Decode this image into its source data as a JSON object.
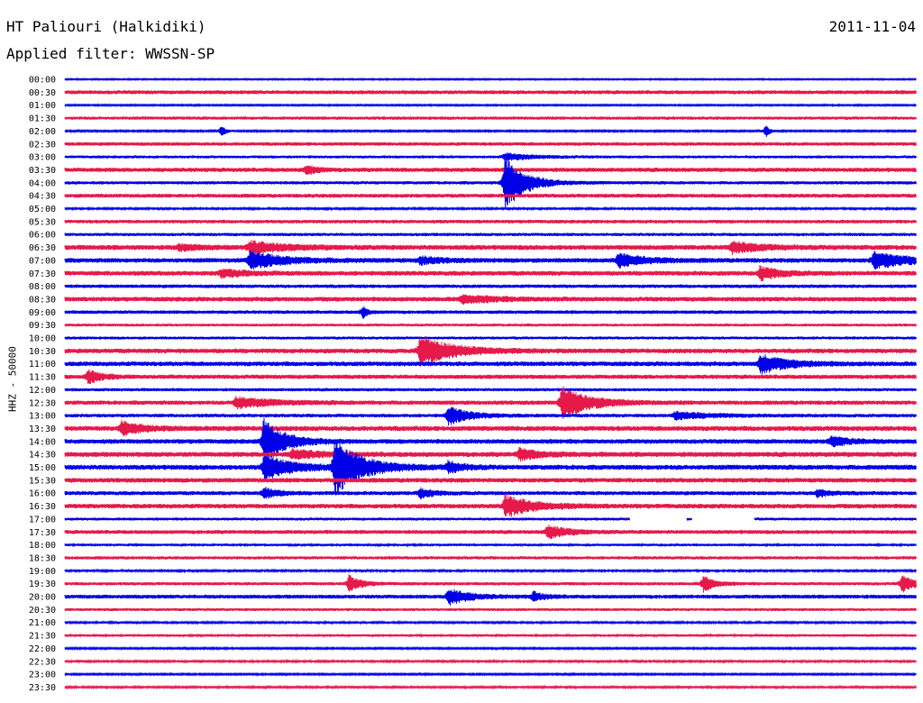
{
  "header": {
    "station": "HT Paliouri (Halkidiki)",
    "date": "2011-11-04",
    "filter_text": "Applied filter: WWSSN-SP"
  },
  "chart_data": {
    "type": "line",
    "title": "HT Paliouri (Halkidiki)",
    "ylabel": "HHZ - 50000",
    "rows": [
      "00:00",
      "00:30",
      "01:00",
      "01:30",
      "02:00",
      "02:30",
      "03:00",
      "03:30",
      "04:00",
      "04:30",
      "05:00",
      "05:30",
      "06:00",
      "06:30",
      "07:00",
      "07:30",
      "08:00",
      "08:30",
      "09:00",
      "09:30",
      "10:00",
      "10:30",
      "11:00",
      "11:30",
      "12:00",
      "12:30",
      "13:00",
      "13:30",
      "14:00",
      "14:30",
      "15:00",
      "15:30",
      "16:00",
      "16:30",
      "17:00",
      "17:30",
      "18:00",
      "18:30",
      "19:00",
      "19:30",
      "20:00",
      "20:30",
      "21:00",
      "21:30",
      "22:00",
      "22:30",
      "23:00",
      "23:30"
    ],
    "row_minutes": 30,
    "colors": {
      "even_rows": "#0000e6",
      "odd_rows": "#e6194b"
    },
    "noise_level": [
      0.8,
      2.2,
      0.9,
      1.8,
      1.0,
      2.0,
      1.6,
      2.4,
      1.8,
      2.2,
      1.2,
      2.0,
      1.8,
      2.8,
      2.6,
      2.6,
      2.0,
      2.6,
      2.0,
      1.6,
      1.6,
      2.6,
      2.6,
      2.4,
      1.8,
      2.4,
      2.0,
      2.8,
      2.6,
      2.8,
      2.8,
      2.6,
      2.2,
      2.6,
      1.6,
      2.2,
      1.4,
      1.8,
      1.2,
      1.8,
      2.2,
      1.6,
      1.2,
      1.4,
      1.0,
      1.2,
      1.0,
      1.2
    ],
    "events": [
      {
        "row": 4,
        "minute": 5.5,
        "amp": 7,
        "dur": 0.3
      },
      {
        "row": 4,
        "minute": 24.7,
        "amp": 7,
        "dur": 0.3
      },
      {
        "row": 6,
        "minute": 15.5,
        "amp": 4,
        "dur": 2.0
      },
      {
        "row": 7,
        "minute": 8.5,
        "amp": 5,
        "dur": 0.8
      },
      {
        "row": 8,
        "minute": 15.5,
        "amp": 30,
        "dur": 1.5
      },
      {
        "row": 13,
        "minute": 4.0,
        "amp": 3,
        "dur": 1.5
      },
      {
        "row": 13,
        "minute": 6.5,
        "amp": 6,
        "dur": 2.5
      },
      {
        "row": 13,
        "minute": 23.5,
        "amp": 6,
        "dur": 2.0
      },
      {
        "row": 14,
        "minute": 6.5,
        "amp": 9,
        "dur": 2.5
      },
      {
        "row": 14,
        "minute": 12.5,
        "amp": 4,
        "dur": 1.5
      },
      {
        "row": 14,
        "minute": 19.5,
        "amp": 7,
        "dur": 2.0
      },
      {
        "row": 14,
        "minute": 28.5,
        "amp": 9,
        "dur": 2.5
      },
      {
        "row": 15,
        "minute": 5.5,
        "amp": 4,
        "dur": 1.8
      },
      {
        "row": 15,
        "minute": 24.5,
        "amp": 7,
        "dur": 1.5
      },
      {
        "row": 17,
        "minute": 14.0,
        "amp": 4,
        "dur": 2.5
      },
      {
        "row": 18,
        "minute": 10.5,
        "amp": 7,
        "dur": 0.3
      },
      {
        "row": 21,
        "minute": 12.5,
        "amp": 16,
        "dur": 2.5
      },
      {
        "row": 22,
        "minute": 24.5,
        "amp": 10,
        "dur": 2.0
      },
      {
        "row": 23,
        "minute": 0.8,
        "amp": 7,
        "dur": 1.0
      },
      {
        "row": 25,
        "minute": 6.0,
        "amp": 6,
        "dur": 2.5
      },
      {
        "row": 25,
        "minute": 17.5,
        "amp": 18,
        "dur": 2.0
      },
      {
        "row": 26,
        "minute": 13.5,
        "amp": 10,
        "dur": 1.5
      },
      {
        "row": 26,
        "minute": 21.5,
        "amp": 4,
        "dur": 2.5
      },
      {
        "row": 27,
        "minute": 2.0,
        "amp": 7,
        "dur": 1.5
      },
      {
        "row": 28,
        "minute": 7.0,
        "amp": 25,
        "dur": 1.5
      },
      {
        "row": 28,
        "minute": 27.0,
        "amp": 5,
        "dur": 1.5
      },
      {
        "row": 29,
        "minute": 8.0,
        "amp": 5,
        "dur": 2.0
      },
      {
        "row": 29,
        "minute": 16.0,
        "amp": 6,
        "dur": 1.5
      },
      {
        "row": 30,
        "minute": 7.0,
        "amp": 14,
        "dur": 2.0
      },
      {
        "row": 30,
        "minute": 9.5,
        "amp": 30,
        "dur": 2.0
      },
      {
        "row": 30,
        "minute": 13.5,
        "amp": 6,
        "dur": 1.0
      },
      {
        "row": 32,
        "minute": 7.0,
        "amp": 6,
        "dur": 1.0
      },
      {
        "row": 32,
        "minute": 12.5,
        "amp": 5,
        "dur": 1.0
      },
      {
        "row": 32,
        "minute": 26.5,
        "amp": 4,
        "dur": 1.0
      },
      {
        "row": 33,
        "minute": 15.5,
        "amp": 12,
        "dur": 2.0
      },
      {
        "row": 35,
        "minute": 17.0,
        "amp": 7,
        "dur": 1.5
      },
      {
        "row": 39,
        "minute": 10.0,
        "amp": 10,
        "dur": 0.8
      },
      {
        "row": 39,
        "minute": 22.5,
        "amp": 9,
        "dur": 0.8
      },
      {
        "row": 39,
        "minute": 29.5,
        "amp": 9,
        "dur": 1.0
      },
      {
        "row": 40,
        "minute": 13.5,
        "amp": 9,
        "dur": 1.5
      },
      {
        "row": 40,
        "minute": 16.5,
        "amp": 5,
        "dur": 0.8
      }
    ],
    "gaps": [
      {
        "row": 34,
        "start_minute": 19.9,
        "end_minute": 21.9
      },
      {
        "row": 34,
        "start_minute": 22.1,
        "end_minute": 24.3
      }
    ]
  }
}
